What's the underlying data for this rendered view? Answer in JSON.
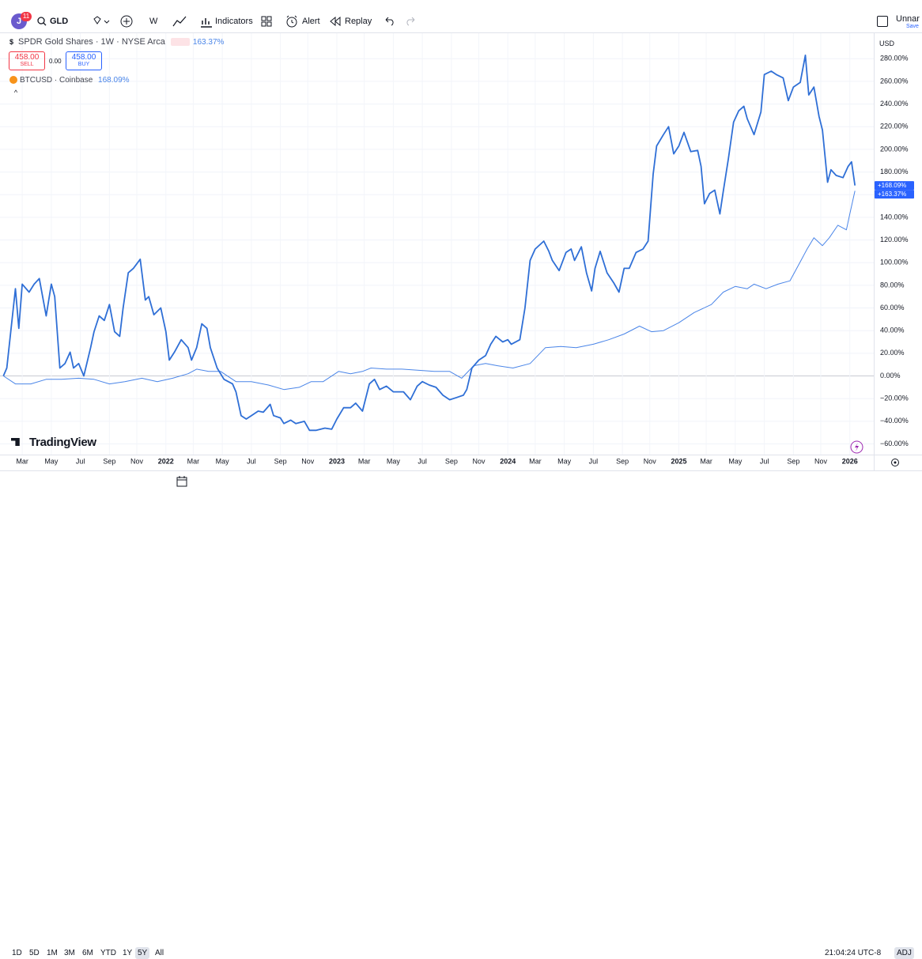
{
  "toolbar": {
    "avatar": "J",
    "badge": "11",
    "symbol": "GLD",
    "interval": "W",
    "indicators": "Indicators",
    "alert": "Alert",
    "replay": "Replay",
    "layout_name": "Unnar",
    "save": "Save"
  },
  "legend": {
    "main_icon": "$",
    "sell_price": "458.00",
    "sell": "SELL",
    "spread": "0.00",
    "buy_price": "458.00",
    "buy": "BUY"
  },
  "currency": "USD",
  "watermark": "TradingView",
  "range_buttons": [
    "1D",
    "5D",
    "1M",
    "3M",
    "6M",
    "YTD",
    "1Y",
    "5Y",
    "All"
  ],
  "clock": "21:04:24 UTC-8",
  "adj": "ADJ",
  "chart_data": {
    "type": "line",
    "xlim": [
      2021.03,
      2026.14
    ],
    "ylim": [
      -69.4,
      302.5
    ],
    "grid": true,
    "xticks": [
      {
        "value": 2021.16,
        "label": "Mar"
      },
      {
        "value": 2021.33,
        "label": "May"
      },
      {
        "value": 2021.5,
        "label": "Jul"
      },
      {
        "value": 2021.67,
        "label": "Sep"
      },
      {
        "value": 2021.83,
        "label": "Nov"
      },
      2022,
      {
        "value": 2022.16,
        "label": "Mar"
      },
      {
        "value": 2022.33,
        "label": "May"
      },
      {
        "value": 2022.5,
        "label": "Jul"
      },
      {
        "value": 2022.67,
        "label": "Sep"
      },
      {
        "value": 2022.83,
        "label": "Nov"
      },
      2023,
      {
        "value": 2023.16,
        "label": "Mar"
      },
      {
        "value": 2023.33,
        "label": "May"
      },
      {
        "value": 2023.5,
        "label": "Jul"
      },
      {
        "value": 2023.67,
        "label": "Sep"
      },
      {
        "value": 2023.83,
        "label": "Nov"
      },
      2024,
      {
        "value": 2024.16,
        "label": "Mar"
      },
      {
        "value": 2024.33,
        "label": "May"
      },
      {
        "value": 2024.5,
        "label": "Jul"
      },
      {
        "value": 2024.67,
        "label": "Sep"
      },
      {
        "value": 2024.83,
        "label": "Nov"
      },
      2025,
      {
        "value": 2025.16,
        "label": "Mar"
      },
      {
        "value": 2025.33,
        "label": "May"
      },
      {
        "value": 2025.5,
        "label": "Jul"
      },
      {
        "value": 2025.67,
        "label": "Sep"
      },
      {
        "value": 2025.83,
        "label": "Nov"
      },
      2026
    ],
    "yticks": [
      {
        "value": 280,
        "label": "280.00%"
      },
      {
        "value": 260,
        "label": "260.00%"
      },
      {
        "value": 240,
        "label": "240.00%"
      },
      {
        "value": 220,
        "label": "220.00%"
      },
      {
        "value": 200,
        "label": "200.00%"
      },
      {
        "value": 180,
        "label": "180.00%"
      },
      {
        "value": 160,
        "label": "160.00%"
      },
      {
        "value": 140,
        "label": "140.00%"
      },
      {
        "value": 120,
        "label": "120.00%"
      },
      {
        "value": 100,
        "label": "100.00%"
      },
      {
        "value": 80,
        "label": "80.00%"
      },
      {
        "value": 60,
        "label": "60.00%"
      },
      {
        "value": 40,
        "label": "40.00%"
      },
      {
        "value": 20,
        "label": "20.00%"
      },
      {
        "value": 0,
        "label": "0.00%"
      },
      {
        "value": -20,
        "label": "−20.00%"
      },
      {
        "value": -40,
        "label": "−40.00%"
      },
      {
        "value": -60,
        "label": "−60.00%"
      }
    ],
    "series": [
      {
        "name": "SPDR Gold Shares · 1W · NYSE Arca",
        "color": "#4a85e8",
        "legend_value": "163.37%",
        "last_label": "+163.37%",
        "x": [
          2021.05,
          2021.12,
          2021.21,
          2021.3,
          2021.39,
          2021.49,
          2021.58,
          2021.67,
          2021.76,
          2021.86,
          2021.95,
          2022.04,
          2022.13,
          2022.18,
          2022.25,
          2022.32,
          2022.41,
          2022.5,
          2022.6,
          2022.69,
          2022.78,
          2022.85,
          2022.92,
          2023.01,
          2023.08,
          2023.15,
          2023.2,
          2023.29,
          2023.38,
          2023.48,
          2023.57,
          2023.66,
          2023.73,
          2023.8,
          2023.87,
          2023.94,
          2024.03,
          2024.13,
          2024.22,
          2024.31,
          2024.4,
          2024.5,
          2024.59,
          2024.68,
          2024.77,
          2024.84,
          2024.91,
          2025.0,
          2025.09,
          2025.19,
          2025.26,
          2025.33,
          2025.4,
          2025.44,
          2025.51,
          2025.58,
          2025.65,
          2025.7,
          2025.75,
          2025.79,
          2025.84,
          2025.88,
          2025.93,
          2025.98,
          2026.0,
          2026.03
        ],
        "values": [
          0,
          -7,
          -7,
          -3,
          -3,
          -2,
          -3,
          -7,
          -5,
          -2,
          -5,
          -2,
          2,
          6,
          4,
          4,
          -5,
          -5,
          -8,
          -12,
          -10,
          -5,
          -5,
          4,
          2,
          4,
          7,
          6,
          6,
          5,
          4,
          4,
          -2,
          9,
          11,
          9,
          7,
          11,
          25,
          26,
          25,
          28,
          32,
          37,
          44,
          39,
          40,
          47,
          56,
          63,
          74,
          79,
          77,
          81,
          77,
          81,
          84,
          98,
          112,
          122,
          115,
          122,
          133,
          129,
          143,
          163.37
        ]
      },
      {
        "name": "BTCUSD · Coinbase",
        "color": "#2f6fd6",
        "legend_value": "168.09%",
        "last_label": "+168.09%",
        "x": [
          2021.05,
          2021.07,
          2021.12,
          2021.14,
          2021.16,
          2021.2,
          2021.23,
          2021.26,
          2021.3,
          2021.33,
          2021.35,
          2021.38,
          2021.41,
          2021.44,
          2021.46,
          2021.49,
          2021.52,
          2021.56,
          2021.58,
          2021.61,
          2021.64,
          2021.67,
          2021.7,
          2021.73,
          2021.75,
          2021.78,
          2021.81,
          2021.85,
          2021.88,
          2021.9,
          2021.93,
          2021.97,
          2022.0,
          2022.02,
          2022.05,
          2022.09,
          2022.13,
          2022.15,
          2022.18,
          2022.21,
          2022.24,
          2022.26,
          2022.3,
          2022.34,
          2022.39,
          2022.41,
          2022.44,
          2022.47,
          2022.5,
          2022.54,
          2022.57,
          2022.61,
          2022.63,
          2022.67,
          2022.69,
          2022.73,
          2022.76,
          2022.81,
          2022.84,
          2022.88,
          2022.93,
          2022.97,
          2023.0,
          2023.04,
          2023.08,
          2023.11,
          2023.15,
          2023.19,
          2023.22,
          2023.25,
          2023.29,
          2023.33,
          2023.37,
          2023.39,
          2023.43,
          2023.47,
          2023.5,
          2023.54,
          2023.58,
          2023.62,
          2023.66,
          2023.7,
          2023.74,
          2023.76,
          2023.79,
          2023.83,
          2023.87,
          2023.9,
          2023.93,
          2023.97,
          2024.0,
          2024.02,
          2024.07,
          2024.1,
          2024.13,
          2024.16,
          2024.21,
          2024.24,
          2024.26,
          2024.3,
          2024.34,
          2024.37,
          2024.39,
          2024.43,
          2024.46,
          2024.49,
          2024.51,
          2024.54,
          2024.58,
          2024.62,
          2024.65,
          2024.68,
          2024.71,
          2024.75,
          2024.79,
          2024.82,
          2024.85,
          2024.87,
          2024.91,
          2024.94,
          2024.97,
          2025.0,
          2025.03,
          2025.07,
          2025.11,
          2025.13,
          2025.15,
          2025.18,
          2025.21,
          2025.24,
          2025.26,
          2025.29,
          2025.32,
          2025.35,
          2025.38,
          2025.4,
          2025.44,
          2025.48,
          2025.5,
          2025.54,
          2025.57,
          2025.61,
          2025.64,
          2025.67,
          2025.71,
          2025.74,
          2025.76,
          2025.79,
          2025.82,
          2025.84,
          2025.87,
          2025.89,
          2025.92,
          2025.96,
          2025.99,
          2026.01,
          2026.03
        ],
        "values": [
          0,
          7,
          77,
          42,
          81,
          74,
          81,
          86,
          53,
          81,
          70,
          7,
          11,
          21,
          7,
          11,
          0,
          25,
          39,
          53,
          49,
          63,
          39,
          35,
          60,
          91,
          95,
          103,
          67,
          70,
          54,
          60,
          39,
          14,
          21,
          32,
          25,
          14,
          25,
          46,
          42,
          25,
          7,
          -3,
          -7,
          -14,
          -35,
          -38,
          -35,
          -31,
          -32,
          -25,
          -35,
          -37,
          -42,
          -39,
          -42,
          -40,
          -48,
          -48,
          -46,
          -47,
          -38,
          -28,
          -28,
          -24,
          -31,
          -7,
          -3,
          -12,
          -9,
          -14,
          -14,
          -14,
          -21,
          -9,
          -5,
          -8,
          -10,
          -17,
          -21,
          -19,
          -17,
          -12,
          7,
          14,
          18,
          28,
          35,
          30,
          32,
          28,
          32,
          60,
          102,
          112,
          119,
          110,
          102,
          93,
          109,
          112,
          102,
          114,
          91,
          75,
          95,
          110,
          91,
          82,
          74,
          95,
          95,
          109,
          112,
          119,
          178,
          203,
          213,
          220,
          196,
          203,
          215,
          198,
          199,
          185,
          152,
          161,
          164,
          143,
          163,
          192,
          224,
          234,
          238,
          227,
          213,
          233,
          266,
          269,
          266,
          263,
          243,
          255,
          259,
          283,
          248,
          255,
          229,
          217,
          171,
          182,
          177,
          175,
          185,
          189,
          168.09
        ]
      }
    ]
  }
}
